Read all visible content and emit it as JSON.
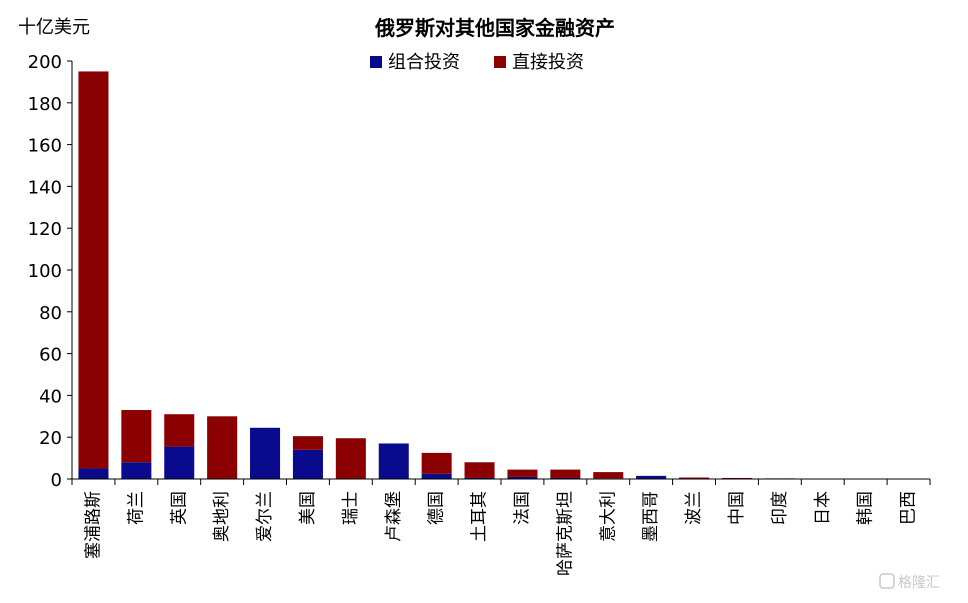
{
  "chart_data": {
    "type": "bar",
    "stacked": true,
    "title": "俄罗斯对其他国家金融资产",
    "ylabel": "十亿美元",
    "xlabel": "",
    "ylim": [
      0,
      200
    ],
    "yticks": [
      0,
      20,
      40,
      60,
      80,
      100,
      120,
      140,
      160,
      180,
      200
    ],
    "grid": false,
    "legend_position": "top-center",
    "categories": [
      "塞浦路斯",
      "荷兰",
      "英国",
      "奥地利",
      "爱尔兰",
      "美国",
      "瑞士",
      "卢森堡",
      "德国",
      "土耳其",
      "法国",
      "哈萨克斯坦",
      "意大利",
      "墨西哥",
      "波兰",
      "中国",
      "印度",
      "日本",
      "韩国",
      "巴西"
    ],
    "series": [
      {
        "name": "组合投资",
        "color": "#0a0a8c",
        "values": [
          5,
          8,
          15.5,
          0,
          24.5,
          14,
          0,
          17,
          2.5,
          0.5,
          1,
          0.5,
          0.3,
          1.5,
          0.2,
          0,
          0,
          0,
          0,
          0
        ]
      },
      {
        "name": "直接投资",
        "color": "#8b0000",
        "values": [
          190,
          25,
          15.5,
          30,
          0,
          6.5,
          19.5,
          0,
          10,
          7.5,
          3.5,
          4,
          3,
          0,
          0.5,
          0.5,
          0.3,
          0.2,
          0.2,
          0.2
        ]
      }
    ]
  },
  "watermark": {
    "text": "格隆汇"
  }
}
